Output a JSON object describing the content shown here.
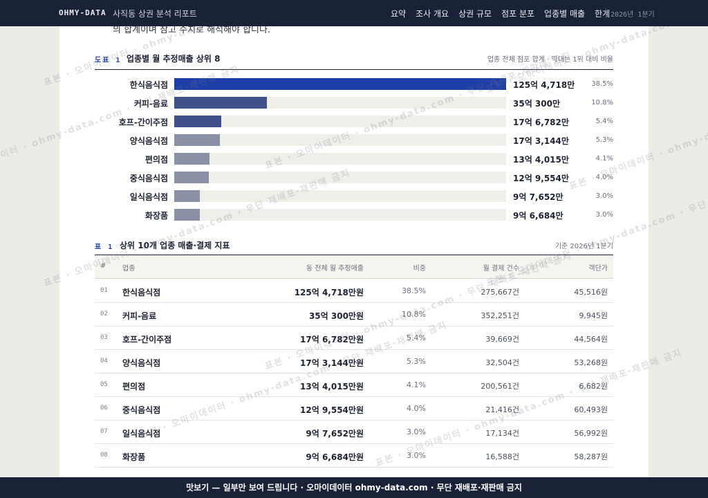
{
  "nav": {
    "brand": "OHMY-DATA",
    "doc_title": "사직동 상권 분석 리포트",
    "items": [
      "요약",
      "조사 개요",
      "상권 규모",
      "점포 분포",
      "업종별 매출",
      "한계"
    ],
    "period": "2026년 1분기"
  },
  "paper": {
    "cut_text": "의 합계이며 참고 수치로 해석해야 합니다."
  },
  "figure": {
    "tag": "도표 1",
    "title": "업종별 월 추정매출 상위 8",
    "note": "업종 전체 점포 합계 · 막대는 1위 대비 비율"
  },
  "chart_data": {
    "type": "bar",
    "title": "업종별 월 추정매출 상위 8",
    "categories": [
      "한식음식점",
      "커피-음료",
      "호프-간이주점",
      "양식음식점",
      "편의점",
      "중식음식점",
      "일식음식점",
      "화장품"
    ],
    "series": [
      {
        "values": [
          1254718,
          350300,
          176782,
          173144,
          134015,
          129554,
          97652,
          96684
        ]
      }
    ],
    "unit": "만원",
    "value_labels": [
      "125억 4,718만",
      "35억 300만",
      "17억 6,782만",
      "17억 3,144만",
      "13억 4,015만",
      "12억 9,554만",
      "9억 7,652만",
      "9억 6,684만"
    ],
    "shares": [
      "38.5%",
      "10.8%",
      "5.4%",
      "5.3%",
      "4.1%",
      "4.0%",
      "3.0%",
      "3.0%"
    ],
    "colors": [
      "#1f3fa8",
      "#3f5188",
      "#3f5188",
      "#8a90a6",
      "#8a90a6",
      "#8a90a6",
      "#8a90a6",
      "#8a90a6"
    ],
    "legend": "none",
    "grid": false
  },
  "table": {
    "tag": "표 1",
    "title": "상위 10개 업종 매출·결제 지표",
    "note": "기준 2026년 1분기",
    "columns": [
      "#",
      "업종",
      "동 전체 월 추정매출",
      "비중",
      "월 결제 건수",
      "객단가"
    ],
    "rows": [
      {
        "no": "01",
        "name": "한식음식점",
        "sales": "125억 4,718만원",
        "share": "38.5%",
        "count": "275,667건",
        "avg": "45,516원"
      },
      {
        "no": "02",
        "name": "커피-음료",
        "sales": "35억 300만원",
        "share": "10.8%",
        "count": "352,251건",
        "avg": "9,945원"
      },
      {
        "no": "03",
        "name": "호프-간이주점",
        "sales": "17억 6,782만원",
        "share": "5.4%",
        "count": "39,669건",
        "avg": "44,564원"
      },
      {
        "no": "04",
        "name": "양식음식점",
        "sales": "17억 3,144만원",
        "share": "5.3%",
        "count": "32,504건",
        "avg": "53,268원"
      },
      {
        "no": "05",
        "name": "편의점",
        "sales": "13억 4,015만원",
        "share": "4.1%",
        "count": "200,561건",
        "avg": "6,682원"
      },
      {
        "no": "06",
        "name": "중식음식점",
        "sales": "12억 9,554만원",
        "share": "4.0%",
        "count": "21,416건",
        "avg": "60,493원"
      },
      {
        "no": "07",
        "name": "일식음식점",
        "sales": "9억 7,652만원",
        "share": "3.0%",
        "count": "17,134건",
        "avg": "56,992원"
      },
      {
        "no": "08",
        "name": "화장품",
        "sales": "9억 6,684만원",
        "share": "3.0%",
        "count": "16,588건",
        "avg": "58,287원"
      }
    ]
  },
  "watermark": {
    "text": "표본 · 오마이데이터 · ohmy-data.com · 무단 재배포·재판매 금지"
  },
  "footer": {
    "text": "맛보기 — 일부만 보여 드립니다 · 오마이데이터 ohmy-data.com · 무단 재배포·재판매 금지"
  }
}
